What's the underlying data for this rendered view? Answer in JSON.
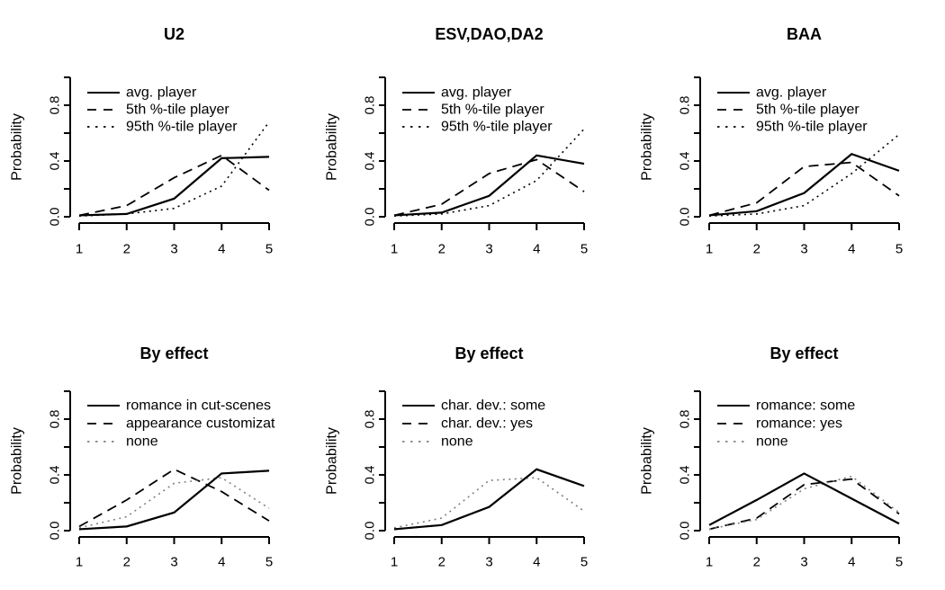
{
  "figure": {
    "background": "#ffffff",
    "axis_color": "#000000",
    "ylabel": "Probability",
    "x_tick_labels": [
      "1",
      "2",
      "3",
      "4",
      "5"
    ],
    "y_axis": {
      "ticks": [
        0,
        0.2,
        0.4,
        0.6,
        0.8,
        1.0
      ],
      "labeled_ticks": [
        0.0,
        0.4,
        0.8
      ],
      "labels": [
        "0.0",
        "0.4",
        "0.8"
      ]
    },
    "colors": {
      "black_line": "#000000",
      "gray_line": "#808080"
    }
  },
  "chart_data": [
    {
      "type": "line",
      "title": "U2",
      "xlabel": "",
      "ylabel": "Probability",
      "x": [
        1,
        2,
        3,
        4,
        5
      ],
      "xlim": [
        1,
        5
      ],
      "ylim": [
        0,
        1.0
      ],
      "grid": false,
      "legend_position": "top-left",
      "series": [
        {
          "name": "avg. player",
          "style": "solid",
          "color": "#000000",
          "values": [
            0.01,
            0.02,
            0.13,
            0.42,
            0.43
          ]
        },
        {
          "name": "5th %-tile player",
          "style": "dashed",
          "color": "#000000",
          "values": [
            0.01,
            0.08,
            0.28,
            0.44,
            0.19
          ]
        },
        {
          "name": "95th %-tile player",
          "style": "dotted",
          "color": "#000000",
          "values": [
            0.005,
            0.02,
            0.06,
            0.22,
            0.68
          ]
        }
      ]
    },
    {
      "type": "line",
      "title": "ESV,DAO,DA2",
      "xlabel": "",
      "ylabel": "Probability",
      "x": [
        1,
        2,
        3,
        4,
        5
      ],
      "xlim": [
        1,
        5
      ],
      "ylim": [
        0,
        1.0
      ],
      "grid": false,
      "legend_position": "top-left",
      "series": [
        {
          "name": "avg. player",
          "style": "solid",
          "color": "#000000",
          "values": [
            0.01,
            0.03,
            0.15,
            0.44,
            0.38
          ]
        },
        {
          "name": "5th %-tile player",
          "style": "dashed",
          "color": "#000000",
          "values": [
            0.01,
            0.09,
            0.31,
            0.41,
            0.18
          ]
        },
        {
          "name": "95th %-tile player",
          "style": "dotted",
          "color": "#000000",
          "values": [
            0.005,
            0.02,
            0.08,
            0.26,
            0.63
          ]
        }
      ]
    },
    {
      "type": "line",
      "title": "BAA",
      "xlabel": "",
      "ylabel": "Probability",
      "x": [
        1,
        2,
        3,
        4,
        5
      ],
      "xlim": [
        1,
        5
      ],
      "ylim": [
        0,
        1.0
      ],
      "grid": false,
      "legend_position": "top-left",
      "series": [
        {
          "name": "avg. player",
          "style": "solid",
          "color": "#000000",
          "values": [
            0.01,
            0.04,
            0.17,
            0.45,
            0.33
          ]
        },
        {
          "name": "5th %-tile player",
          "style": "dashed",
          "color": "#000000",
          "values": [
            0.01,
            0.1,
            0.36,
            0.39,
            0.15
          ]
        },
        {
          "name": "95th %-tile player",
          "style": "dotted",
          "color": "#000000",
          "values": [
            0.005,
            0.02,
            0.08,
            0.31,
            0.59
          ]
        }
      ]
    },
    {
      "type": "line",
      "title": "By effect",
      "xlabel": "",
      "ylabel": "Probability",
      "x": [
        1,
        2,
        3,
        4,
        5
      ],
      "xlim": [
        1,
        5
      ],
      "ylim": [
        0,
        1.0
      ],
      "grid": false,
      "legend_position": "top-left",
      "series": [
        {
          "name": "romance in cut-scenes",
          "style": "solid",
          "color": "#000000",
          "values": [
            0.01,
            0.03,
            0.13,
            0.41,
            0.43
          ]
        },
        {
          "name": "appearance customizat",
          "style": "dashed",
          "color": "#000000",
          "values": [
            0.03,
            0.22,
            0.44,
            0.28,
            0.07
          ]
        },
        {
          "name": "none",
          "style": "dotted",
          "color": "#808080",
          "values": [
            0.02,
            0.1,
            0.34,
            0.38,
            0.16
          ]
        }
      ]
    },
    {
      "type": "line",
      "title": "By effect",
      "xlabel": "",
      "ylabel": "Probability",
      "x": [
        1,
        2,
        3,
        4,
        5
      ],
      "xlim": [
        1,
        5
      ],
      "ylim": [
        0,
        1.0
      ],
      "grid": false,
      "legend_position": "top-left",
      "series": [
        {
          "name": "char. dev.: some",
          "style": "solid",
          "color": "#000000",
          "values": [
            0.01,
            0.04,
            0.17,
            0.44,
            0.32
          ]
        },
        {
          "name": "char. dev.: yes",
          "style": "dashed",
          "color": "#000000",
          "values": [
            0.01,
            0.04,
            0.17,
            0.44,
            0.32
          ]
        },
        {
          "name": "none",
          "style": "dotted",
          "color": "#808080",
          "values": [
            0.02,
            0.09,
            0.36,
            0.38,
            0.14
          ]
        }
      ]
    },
    {
      "type": "line",
      "title": "By effect",
      "xlabel": "",
      "ylabel": "Probability",
      "x": [
        1,
        2,
        3,
        4,
        5
      ],
      "xlim": [
        1,
        5
      ],
      "ylim": [
        0,
        1.0
      ],
      "grid": false,
      "legend_position": "top-left",
      "series": [
        {
          "name": "romance: some",
          "style": "solid",
          "color": "#000000",
          "values": [
            0.04,
            0.22,
            0.41,
            0.23,
            0.05
          ]
        },
        {
          "name": "romance: yes",
          "style": "dashed",
          "color": "#000000",
          "values": [
            0.01,
            0.09,
            0.33,
            0.37,
            0.12
          ]
        },
        {
          "name": "none",
          "style": "dotted",
          "color": "#808080",
          "values": [
            0.01,
            0.08,
            0.3,
            0.39,
            0.13
          ]
        }
      ]
    }
  ]
}
